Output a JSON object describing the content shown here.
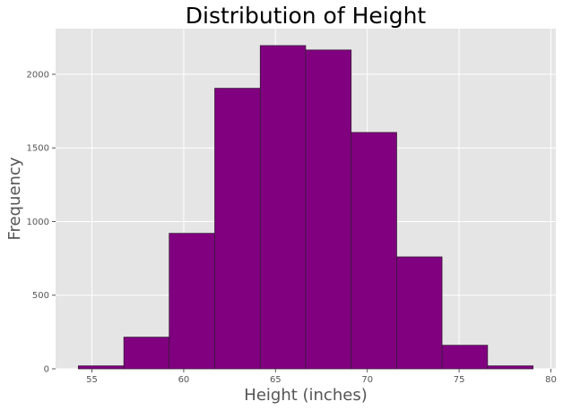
{
  "chart_data": {
    "type": "bar",
    "title": "Distribution of Height",
    "xlabel": "Height (inches)",
    "ylabel": "Frequency",
    "bin_edges": [
      54.26,
      56.74,
      59.21,
      61.69,
      64.17,
      66.64,
      69.12,
      71.6,
      74.07,
      76.55,
      79.03
    ],
    "values": [
      20,
      215,
      920,
      1905,
      2195,
      2165,
      1605,
      760,
      160,
      20
    ],
    "xlim": [
      53.02,
      80.27
    ],
    "ylim": [
      0,
      2310
    ],
    "xticks": [
      55,
      60,
      65,
      70,
      75,
      80
    ],
    "yticks": [
      0,
      500,
      1000,
      1500,
      2000
    ],
    "bar_color": "#800080",
    "edge_color": "#3a1a3a",
    "background": "#e5e5e5",
    "grid": true,
    "grid_color": "#ffffff"
  }
}
